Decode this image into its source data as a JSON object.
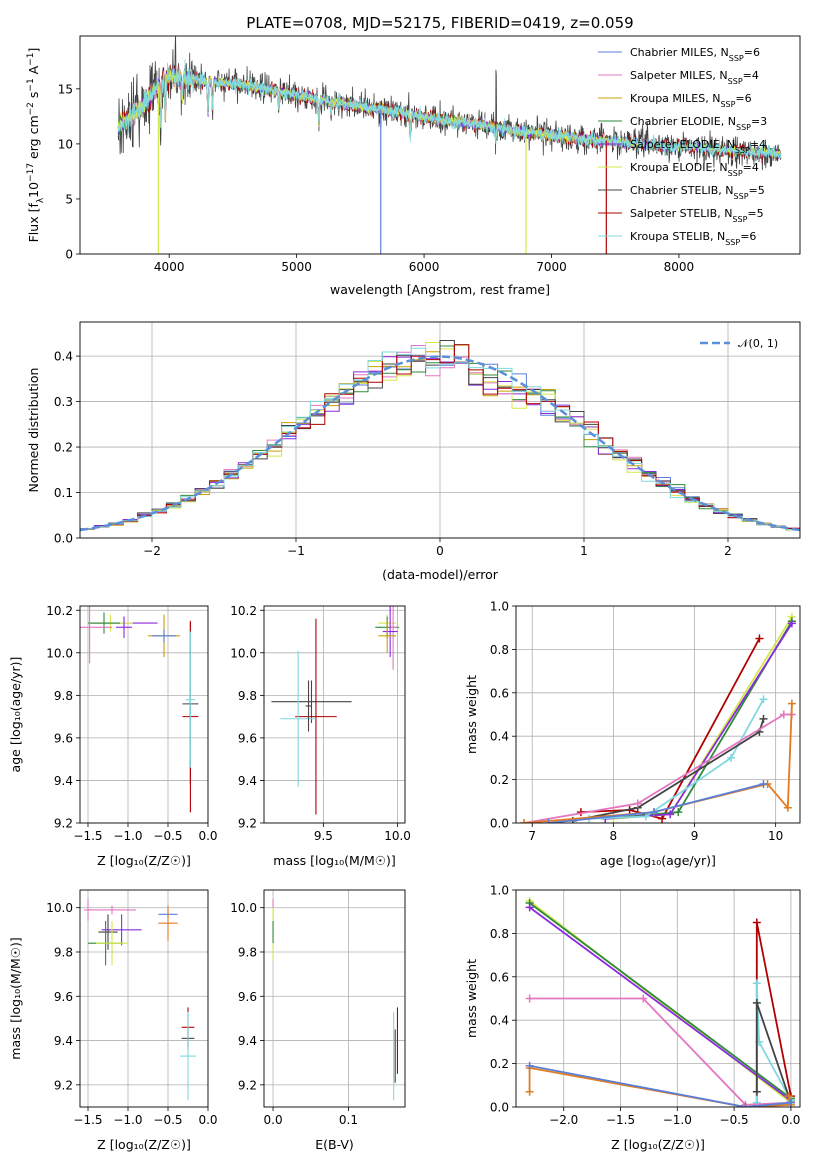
{
  "colors": {
    "chabrier_miles": "#5b7fd6",
    "salpeter_miles": "#e377c2",
    "kroupa_miles": "#c8a000",
    "chabrier_elodie": "#2e8b3a",
    "salpeter_elodie": "#8a2be2",
    "kroupa_elodie": "#d4e84a",
    "chabrier_stelib": "#444444",
    "salpeter_stelib": "#b00000",
    "kroupa_stelib": "#7fd8e0",
    "normal": "#5b8fd9",
    "orange": "#e07b20",
    "pink": "#e377c2"
  },
  "chart_data": [
    {
      "id": "spectrum",
      "type": "line",
      "title": "PLATE=0708, MJD=52175, FIBERID=0419, z=0.059",
      "xlabel": "wavelength [Angstrom, rest frame]",
      "ylabel_parts": [
        "Flux [f",
        "λ",
        "10",
        "−17",
        " erg cm",
        "−2",
        " s",
        "−1",
        " A",
        "−1",
        "]"
      ],
      "xlim": [
        3300,
        8950
      ],
      "ylim": [
        0,
        19.8
      ],
      "xticks": [
        4000,
        5000,
        6000,
        7000,
        8000
      ],
      "yticks": [
        0,
        5,
        10,
        15
      ],
      "legend_position": "top-right",
      "legend": [
        {
          "text": "Chabrier MILES, N",
          "sub": "SSP",
          "tail": "=6",
          "color": "chabrier_miles"
        },
        {
          "text": "Salpeter MILES, N",
          "sub": "SSP",
          "tail": "=4",
          "color": "salpeter_miles"
        },
        {
          "text": "Kroupa MILES, N",
          "sub": "SSP",
          "tail": "=6",
          "color": "kroupa_miles"
        },
        {
          "text": "Chabrier ELODIE, N",
          "sub": "SSP",
          "tail": "=3",
          "color": "chabrier_elodie"
        },
        {
          "text": "Salpeter ELODIE, N",
          "sub": "SSP",
          "tail": "=4",
          "color": "salpeter_elodie"
        },
        {
          "text": "Kroupa ELODIE, N",
          "sub": "SSP",
          "tail": "=4",
          "color": "kroupa_elodie"
        },
        {
          "text": "Chabrier STELIB, N",
          "sub": "SSP",
          "tail": "=5",
          "color": "chabrier_stelib"
        },
        {
          "text": "Salpeter STELIB, N",
          "sub": "SSP",
          "tail": "=5",
          "color": "salpeter_stelib"
        },
        {
          "text": "Kroupa STELIB, N",
          "sub": "SSP",
          "tail": "=6",
          "color": "kroupa_stelib"
        }
      ],
      "continuum": [
        [
          3600,
          11.5
        ],
        [
          3700,
          12.5
        ],
        [
          3800,
          13.5
        ],
        [
          3900,
          15.0
        ],
        [
          4000,
          16.2
        ],
        [
          4200,
          15.8
        ],
        [
          4400,
          15.6
        ],
        [
          4600,
          15.3
        ],
        [
          4800,
          14.9
        ],
        [
          5000,
          14.4
        ],
        [
          5200,
          14.0
        ],
        [
          5500,
          13.4
        ],
        [
          5800,
          12.9
        ],
        [
          6100,
          12.3
        ],
        [
          6400,
          11.8
        ],
        [
          6700,
          11.2
        ],
        [
          7000,
          10.8
        ],
        [
          7300,
          10.4
        ],
        [
          7600,
          10.1
        ],
        [
          7900,
          9.8
        ],
        [
          8200,
          9.6
        ],
        [
          8500,
          9.3
        ],
        [
          8800,
          9.1
        ]
      ],
      "gaps": [
        {
          "series": "kroupa_elodie",
          "x": 3915,
          "to": 0
        },
        {
          "series": "chabrier_miles",
          "x": 5660,
          "to": 0
        },
        {
          "series": "kroupa_elodie",
          "x": 6800,
          "to": 0
        },
        {
          "series": "salpeter_stelib",
          "x": 7430,
          "to": 0
        }
      ]
    },
    {
      "id": "residuals",
      "type": "histogram",
      "xlabel": "(data-model)/error",
      "ylabel": "Normed distribution",
      "xlim": [
        -2.5,
        2.5
      ],
      "ylim": [
        0,
        0.475
      ],
      "xticks": [
        -2,
        -1,
        0,
        1,
        2
      ],
      "yticks": [
        0,
        0.1,
        0.2,
        0.3,
        0.4
      ],
      "bin_width": 0.1,
      "legend": [
        {
          "text_pre": "𝒩(0, 1)",
          "color": "normal"
        }
      ],
      "legend_position": "top-right"
    },
    {
      "id": "age_vs_Z",
      "type": "scatter",
      "xlabel": "Z [log₁₀(Z/Z☉)]",
      "ylabel": "age  [log₁₀(age/yr)]",
      "xlim": [
        -1.6,
        0.0
      ],
      "ylim": [
        9.2,
        10.22
      ],
      "xticks": [
        -1.5,
        -1.0,
        -0.5,
        0.0
      ],
      "yticks": [
        9.2,
        9.4,
        9.6,
        9.8,
        10.0,
        10.2
      ],
      "points": [
        {
          "x": -1.05,
          "y": 10.14,
          "xerr": 0.42,
          "yerr": 0.03,
          "color": "salpeter_elodie"
        },
        {
          "x": -1.22,
          "y": 10.14,
          "xerr": 0.28,
          "yerr": 0.04,
          "color": "kroupa_elodie"
        },
        {
          "x": -1.3,
          "y": 10.14,
          "xerr": 0.2,
          "yerr": 0.05,
          "color": "chabrier_elodie"
        },
        {
          "x": -1.48,
          "y": 10.12,
          "xerr": 0.28,
          "yerr": 0.17,
          "color": "salpeter_miles"
        },
        {
          "x": -1.05,
          "y": 10.12,
          "xerr": 0.1,
          "yerr": 0.05,
          "color": "salpeter_elodie"
        },
        {
          "x": -0.55,
          "y": 10.08,
          "xerr": 0.2,
          "yerr": 0.1,
          "color": "kroupa_miles"
        },
        {
          "x": -0.55,
          "y": 10.08,
          "xerr": 0.15,
          "yerr": 0.03,
          "color": "chabrier_miles"
        },
        {
          "x": -0.22,
          "y": 9.76,
          "xerr": 0.1,
          "yerr": 0.38,
          "color": "chabrier_stelib"
        },
        {
          "x": -0.22,
          "y": 9.7,
          "xerr": 0.1,
          "yerr": 0.45,
          "color": "salpeter_stelib"
        },
        {
          "x": -0.22,
          "y": 9.78,
          "xerr": 0.06,
          "yerr": 0.32,
          "color": "kroupa_stelib"
        }
      ]
    },
    {
      "id": "age_vs_mass",
      "type": "scatter",
      "xlabel": "mass [log₁₀(M/M☉)]",
      "ylabel": "",
      "xlim": [
        9.1,
        10.05
      ],
      "ylim": [
        9.2,
        10.22
      ],
      "xticks": [
        9.5,
        10.0
      ],
      "yticks": [
        9.2,
        9.4,
        9.6,
        9.8,
        10.0,
        10.2
      ],
      "points": [
        {
          "x": 9.93,
          "y": 10.14,
          "xerr": 0.06,
          "yerr": 0.04,
          "color": "kroupa_elodie"
        },
        {
          "x": 9.93,
          "y": 10.12,
          "xerr": 0.08,
          "yerr": 0.05,
          "color": "chabrier_elodie"
        },
        {
          "x": 9.97,
          "y": 10.12,
          "xerr": 0.03,
          "yerr": 0.2,
          "color": "salpeter_miles"
        },
        {
          "x": 9.95,
          "y": 10.1,
          "xerr": 0.05,
          "yerr": 0.12,
          "color": "salpeter_elodie"
        },
        {
          "x": 9.93,
          "y": 10.08,
          "xerr": 0.06,
          "yerr": 0.08,
          "color": "kroupa_miles"
        },
        {
          "x": 9.42,
          "y": 9.77,
          "xerr": 0.27,
          "yerr": 0.1,
          "color": "chabrier_stelib"
        },
        {
          "x": 9.45,
          "y": 9.7,
          "xerr": 0.14,
          "yerr": 0.46,
          "color": "salpeter_stelib"
        },
        {
          "x": 9.33,
          "y": 9.69,
          "xerr": 0.12,
          "yerr": 0.32,
          "color": "kroupa_stelib"
        },
        {
          "x": 9.4,
          "y": 9.75,
          "xerr": 0.02,
          "yerr": 0.12,
          "color": "chabrier_stelib"
        }
      ]
    },
    {
      "id": "weight_vs_age",
      "type": "line",
      "xlabel": "age  [log₁₀(age/yr)]",
      "ylabel": "mass weight",
      "xlim": [
        6.8,
        10.3
      ],
      "ylim": [
        0,
        1.0
      ],
      "xticks": [
        7,
        8,
        9,
        10
      ],
      "yticks": [
        0,
        0.2,
        0.4,
        0.6,
        0.8,
        1.0
      ],
      "series": [
        {
          "color": "salpeter_stelib",
          "x": [
            7.6,
            8.2,
            8.6,
            9.8
          ],
          "y": [
            0.05,
            0.06,
            0.02,
            0.85
          ]
        },
        {
          "color": "kroupa_elodie",
          "x": [
            8.0,
            8.7,
            10.2
          ],
          "y": [
            0.02,
            0.04,
            0.95
          ]
        },
        {
          "color": "chabrier_elodie",
          "x": [
            7.9,
            8.8,
            10.2
          ],
          "y": [
            0.02,
            0.05,
            0.93
          ]
        },
        {
          "color": "salpeter_elodie",
          "x": [
            7.9,
            8.7,
            10.2
          ],
          "y": [
            0.02,
            0.04,
            0.92
          ]
        },
        {
          "color": "kroupa_stelib",
          "x": [
            7.7,
            8.4,
            9.45,
            9.85
          ],
          "y": [
            0.02,
            0.03,
            0.3,
            0.57
          ]
        },
        {
          "color": "chabrier_stelib",
          "x": [
            7.5,
            8.3,
            9.8,
            9.85
          ],
          "y": [
            0.01,
            0.07,
            0.42,
            0.48
          ]
        },
        {
          "color": "pink",
          "x": [
            6.9,
            8.3,
            10.1,
            10.2
          ],
          "y": [
            0.0,
            0.09,
            0.5,
            0.5
          ]
        },
        {
          "color": "orange",
          "x": [
            6.9,
            8.5,
            9.9,
            10.15,
            10.2
          ],
          "y": [
            0.0,
            0.05,
            0.18,
            0.07,
            0.55
          ]
        },
        {
          "color": "chabrier_miles",
          "x": [
            7.2,
            8.5,
            9.85
          ],
          "y": [
            0.0,
            0.05,
            0.18
          ]
        }
      ]
    },
    {
      "id": "mass_vs_Z",
      "type": "scatter",
      "xlabel": "Z [log₁₀(Z/Z☉)]",
      "ylabel": "mass [log₁₀(M/M☉)]",
      "xlim": [
        -1.6,
        0.0
      ],
      "ylim": [
        9.1,
        10.08
      ],
      "xticks": [
        -1.5,
        -1.0,
        -0.5,
        0.0
      ],
      "yticks": [
        9.2,
        9.4,
        9.6,
        9.8,
        10.0
      ],
      "points": [
        {
          "x": -1.2,
          "y": 9.99,
          "xerr": 0.3,
          "yerr": 0.02,
          "color": "salpeter_miles"
        },
        {
          "x": -1.5,
          "y": 9.99,
          "xerr": 0.05,
          "yerr": 0.05,
          "color": "salpeter_miles"
        },
        {
          "x": -0.5,
          "y": 9.97,
          "xerr": 0.12,
          "yerr": 0.02,
          "color": "chabrier_miles"
        },
        {
          "x": -0.5,
          "y": 9.93,
          "xerr": 0.12,
          "yerr": 0.08,
          "color": "orange"
        },
        {
          "x": -1.08,
          "y": 9.9,
          "xerr": 0.25,
          "yerr": 0.07,
          "color": "salpeter_elodie"
        },
        {
          "x": -1.25,
          "y": 9.89,
          "xerr": 0.12,
          "yerr": 0.08,
          "color": "chabrier_stelib"
        },
        {
          "x": -1.28,
          "y": 9.84,
          "xerr": 0.22,
          "yerr": 0.1,
          "color": "chabrier_elodie"
        },
        {
          "x": -1.2,
          "y": 9.84,
          "xerr": 0.2,
          "yerr": 0.1,
          "color": "kroupa_elodie"
        },
        {
          "x": -0.25,
          "y": 9.46,
          "xerr": 0.08,
          "yerr": 0.09,
          "color": "salpeter_stelib"
        },
        {
          "x": -0.25,
          "y": 9.41,
          "xerr": 0.08,
          "yerr": 0.05,
          "color": "chabrier_stelib"
        },
        {
          "x": -0.25,
          "y": 9.33,
          "xerr": 0.1,
          "yerr": 0.2,
          "color": "kroupa_stelib"
        }
      ]
    },
    {
      "id": "mass_vs_ebv",
      "type": "scatter",
      "xlabel": "E(B-V)",
      "ylabel": "",
      "xlim": [
        -0.012,
        0.175
      ],
      "ylim": [
        9.1,
        10.08
      ],
      "xticks": [
        0.0,
        0.1
      ],
      "yticks": [
        9.2,
        9.4,
        9.6,
        9.8,
        10.0
      ],
      "points": [
        {
          "x": 0.0,
          "y": 9.99,
          "xerr": 0.0,
          "yerr": 0.05,
          "color": "salpeter_miles"
        },
        {
          "x": 0.0,
          "y": 9.88,
          "xerr": 0.0,
          "yerr": 0.12,
          "color": "kroupa_elodie"
        },
        {
          "x": 0.0,
          "y": 9.89,
          "xerr": 0.0,
          "yerr": 0.05,
          "color": "chabrier_elodie"
        },
        {
          "x": 0.165,
          "y": 9.4,
          "xerr": 0.0,
          "yerr": 0.15,
          "color": "salpeter_stelib"
        },
        {
          "x": 0.16,
          "y": 9.33,
          "xerr": 0.0,
          "yerr": 0.2,
          "color": "kroupa_stelib"
        },
        {
          "x": 0.162,
          "y": 9.33,
          "xerr": 0.0,
          "yerr": 0.12,
          "color": "chabrier_stelib"
        }
      ]
    },
    {
      "id": "weight_vs_Z",
      "type": "line",
      "xlabel": "Z [log₁₀(Z/Z☉)]",
      "ylabel": "mass weight",
      "xlim": [
        -2.42,
        0.08
      ],
      "ylim": [
        0,
        1.0
      ],
      "xticks": [
        -2.0,
        -1.5,
        -1.0,
        -0.5,
        0.0
      ],
      "yticks": [
        0,
        0.2,
        0.4,
        0.6,
        0.8,
        1.0
      ],
      "series": [
        {
          "color": "kroupa_elodie",
          "x": [
            -2.3,
            0.0,
            0.0
          ],
          "y": [
            0.95,
            0.02,
            0.03
          ]
        },
        {
          "color": "chabrier_elodie",
          "x": [
            -2.3,
            0.0,
            0.0
          ],
          "y": [
            0.94,
            0.04,
            0.03
          ]
        },
        {
          "color": "salpeter_elodie",
          "x": [
            -2.3,
            0.0
          ],
          "y": [
            0.92,
            0.03
          ]
        },
        {
          "color": "salpeter_stelib",
          "x": [
            -0.3,
            -0.3,
            0.0
          ],
          "y": [
            0.01,
            0.85,
            0.05
          ]
        },
        {
          "color": "kroupa_stelib",
          "x": [
            -0.3,
            -0.3,
            -0.28,
            0.0
          ],
          "y": [
            0.02,
            0.57,
            0.3,
            0.03
          ]
        },
        {
          "color": "chabrier_stelib",
          "x": [
            -0.3,
            -0.3,
            0.0
          ],
          "y": [
            0.07,
            0.48,
            0.02
          ]
        },
        {
          "color": "pink",
          "x": [
            -2.3,
            -1.3,
            -0.4,
            0.0
          ],
          "y": [
            0.5,
            0.5,
            0.01,
            0.02
          ]
        },
        {
          "color": "orange",
          "x": [
            -2.3,
            -2.3,
            -0.4,
            0.0,
            -0.02,
            0.0
          ],
          "y": [
            0.07,
            0.18,
            0.0,
            0.01,
            0.05,
            0.02
          ]
        },
        {
          "color": "chabrier_miles",
          "x": [
            -2.3,
            -0.4,
            0.0
          ],
          "y": [
            0.19,
            0.0,
            0.02
          ]
        }
      ]
    }
  ]
}
